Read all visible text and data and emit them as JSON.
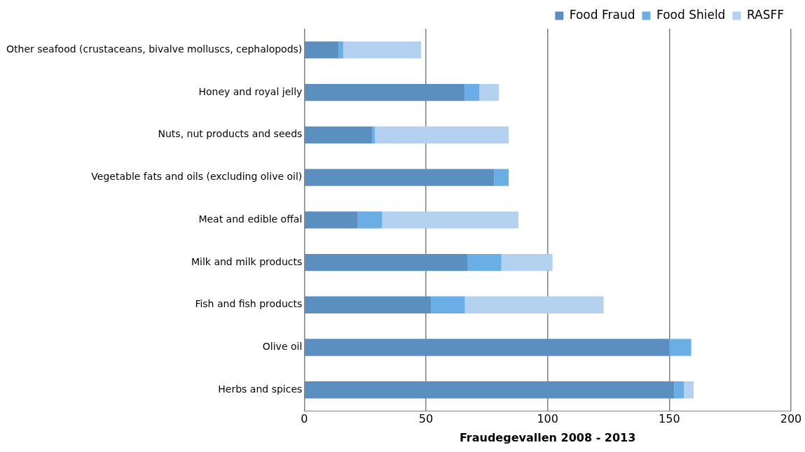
{
  "chart_data": {
    "type": "bar",
    "orientation": "horizontal",
    "stacked": true,
    "xlabel": "Fraudegevallen 2008 - 2013",
    "categories": [
      "Other seafood (crustaceans, bivalve molluscs, cephalopods)",
      "Honey and royal jelly",
      "Nuts, nut products and seeds",
      "Vegetable fats and oils (excluding olive oil)",
      "Meat and edible offal",
      "Milk and milk products",
      "Fish and fish products",
      "Olive oil",
      "Herbs and spices"
    ],
    "series": [
      {
        "name": "Food Fraud",
        "color": "#5b8fbf",
        "values": [
          14,
          66,
          28,
          78,
          22,
          67,
          52,
          150,
          152
        ]
      },
      {
        "name": "Food Shield",
        "color": "#6aaee6",
        "values": [
          2,
          6,
          1,
          6,
          10,
          14,
          14,
          9,
          4
        ]
      },
      {
        "name": "RASFF",
        "color": "#b4d1ef",
        "values": [
          32,
          8,
          55,
          0,
          56,
          21,
          57,
          0,
          4
        ]
      }
    ],
    "xlim": [
      0,
      200
    ],
    "xticks": [
      0,
      50,
      100,
      150,
      200
    ],
    "grid": "x",
    "legend": "top right"
  }
}
